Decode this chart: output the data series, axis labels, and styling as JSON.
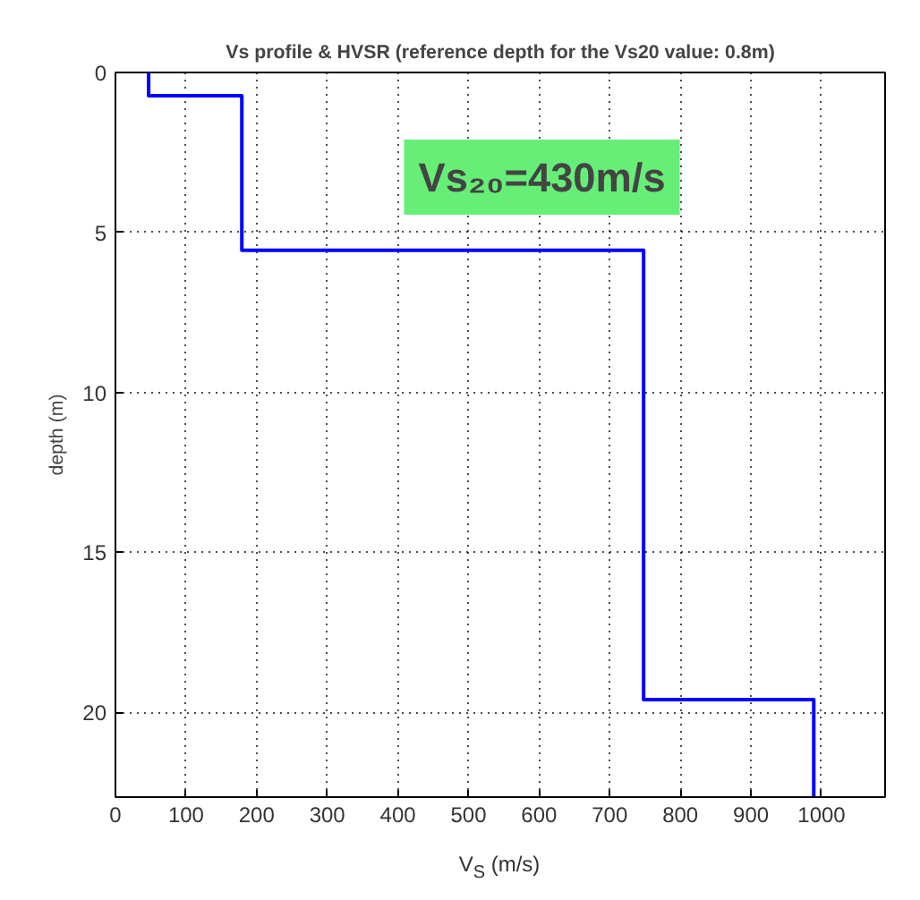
{
  "chart_data": {
    "type": "line",
    "title": "Vs profile & HVSR (reference depth for the Vs20 value: 0.8m)",
    "xlabel": "V$_{S}$ (m/s)",
    "ylabel": "depth (m)",
    "x": [
      47,
      47,
      179,
      179,
      748,
      748,
      989,
      989
    ],
    "series": [
      {
        "color": "#0000ff",
        "values": [
          0,
          0.73,
          0.73,
          5.56,
          5.56,
          19.6,
          19.6,
          22.63
        ]
      }
    ],
    "xlim": [
      0,
      1090
    ],
    "ylim": [
      22.65,
      0
    ],
    "xticks": [
      0,
      100,
      200,
      300,
      400,
      500,
      600,
      700,
      800,
      900,
      1000
    ],
    "yticks": [
      0,
      5,
      10,
      15,
      20
    ],
    "grid": true,
    "line_style": "solid",
    "marker": "none",
    "annotations": [
      "Vs₂₀=430m/s"
    ]
  }
}
